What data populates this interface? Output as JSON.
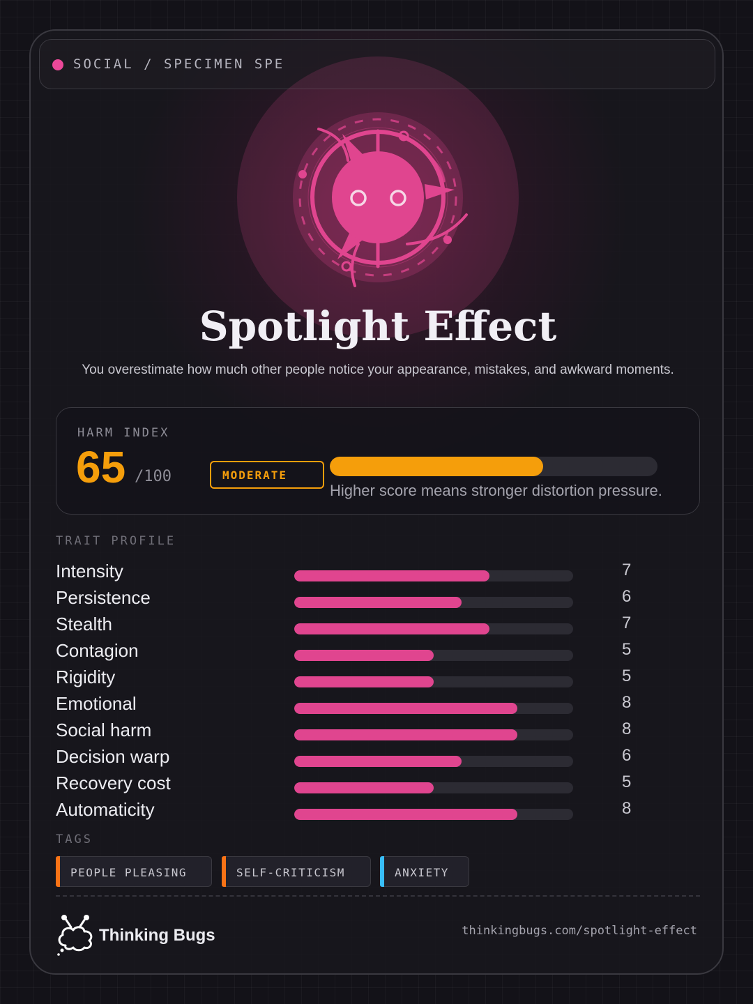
{
  "header": {
    "label": "SOCIAL / SPECIMEN SPE",
    "dot_color": "#ec4899"
  },
  "emblem": {
    "icon": "spotlight-creature-icon",
    "color": "#e0458f"
  },
  "title": "Spotlight Effect",
  "subtitle": "You overestimate how much other people notice your appearance, mistakes, and awkward moments.",
  "harm_index": {
    "label": "HARM INDEX",
    "score": "65",
    "max": "/100",
    "score_value": 65,
    "max_value": 100,
    "level": "MODERATE",
    "caption": "Higher score means stronger distortion pressure.",
    "color": "#f59e0b"
  },
  "trait_profile": {
    "label": "TRAIT PROFILE",
    "max_value": 10,
    "bar_color": "#e0458f",
    "items": [
      {
        "name": "Intensity",
        "value": "7",
        "score": 7
      },
      {
        "name": "Persistence",
        "value": "6",
        "score": 6
      },
      {
        "name": "Stealth",
        "value": "7",
        "score": 7
      },
      {
        "name": "Contagion",
        "value": "5",
        "score": 5
      },
      {
        "name": "Rigidity",
        "value": "5",
        "score": 5
      },
      {
        "name": "Emotional",
        "value": "8",
        "score": 8
      },
      {
        "name": "Social harm",
        "value": "8",
        "score": 8
      },
      {
        "name": "Decision warp",
        "value": "6",
        "score": 6
      },
      {
        "name": "Recovery cost",
        "value": "5",
        "score": 5
      },
      {
        "name": "Automaticity",
        "value": "8",
        "score": 8
      }
    ]
  },
  "tags": {
    "label": "TAGS",
    "items": [
      {
        "label": "PEOPLE PLEASING",
        "color": "#f97316"
      },
      {
        "label": "SELF-CRITICISM",
        "color": "#f97316"
      },
      {
        "label": "ANXIETY",
        "color": "#38bdf8"
      }
    ]
  },
  "footer": {
    "brand": "Thinking Bugs",
    "brand_icon": "thinking-bug-logo-icon",
    "url": "thinkingbugs.com/spotlight-effect"
  }
}
